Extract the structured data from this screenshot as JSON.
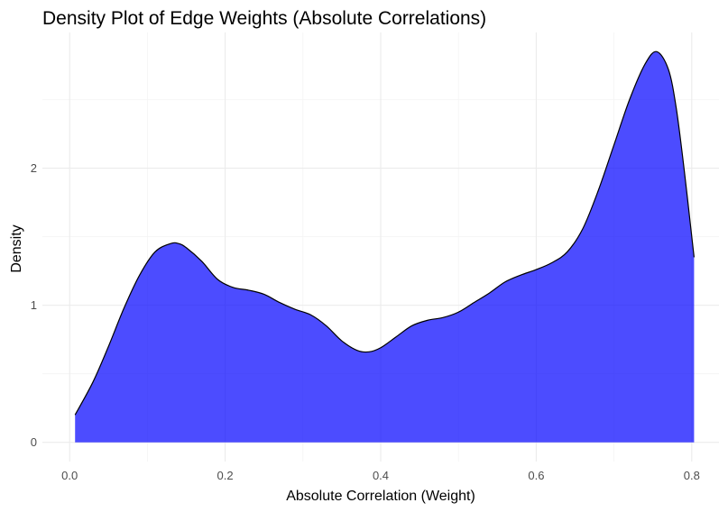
{
  "chart_data": {
    "type": "area",
    "title": "Density Plot of Edge Weights (Absolute Correlations)",
    "xlabel": "Absolute Correlation (Weight)",
    "ylabel": "Density",
    "xlim": [
      -0.035,
      0.835
    ],
    "ylim": [
      -0.14,
      2.99
    ],
    "x_ticks": [
      0.0,
      0.2,
      0.4,
      0.6,
      0.8
    ],
    "x_tick_labels": [
      "0.0",
      "0.2",
      "0.4",
      "0.6",
      "0.8"
    ],
    "y_ticks": [
      0,
      1,
      2
    ],
    "y_tick_labels": [
      "0",
      "1",
      "2"
    ],
    "grid": true,
    "legend": "none",
    "fill_color": "#0000ff",
    "fill_opacity": 0.7,
    "outline_color": "#000000",
    "series": [
      {
        "x": [
          0.007,
          0.03,
          0.05,
          0.07,
          0.09,
          0.11,
          0.13,
          0.14,
          0.15,
          0.17,
          0.19,
          0.21,
          0.23,
          0.25,
          0.27,
          0.29,
          0.31,
          0.33,
          0.35,
          0.37,
          0.385,
          0.4,
          0.42,
          0.44,
          0.46,
          0.48,
          0.5,
          0.52,
          0.54,
          0.56,
          0.58,
          0.6,
          0.62,
          0.64,
          0.66,
          0.68,
          0.7,
          0.72,
          0.74,
          0.755,
          0.77,
          0.78,
          0.79,
          0.8,
          0.803
        ],
        "values": [
          0.2,
          0.44,
          0.7,
          0.98,
          1.22,
          1.39,
          1.45,
          1.45,
          1.42,
          1.32,
          1.19,
          1.13,
          1.11,
          1.08,
          1.02,
          0.97,
          0.93,
          0.85,
          0.74,
          0.67,
          0.66,
          0.69,
          0.77,
          0.85,
          0.89,
          0.91,
          0.95,
          1.02,
          1.09,
          1.17,
          1.22,
          1.26,
          1.31,
          1.39,
          1.56,
          1.84,
          2.17,
          2.5,
          2.76,
          2.85,
          2.72,
          2.44,
          2.0,
          1.5,
          1.35
        ]
      }
    ]
  }
}
